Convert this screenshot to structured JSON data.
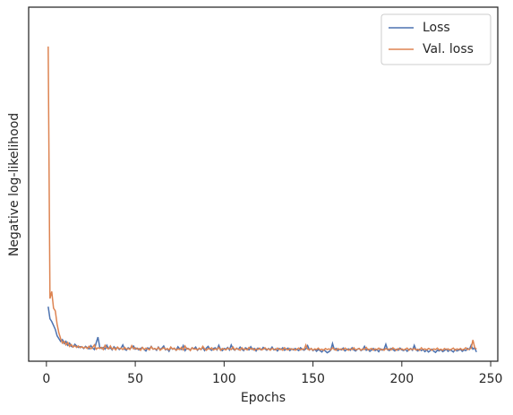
{
  "chart_data": {
    "type": "line",
    "xlabel": "Epochs",
    "ylabel": "Negative log-likelihood",
    "xlim": [
      -10,
      254
    ],
    "xticks": [
      0,
      50,
      100,
      150,
      200,
      250
    ],
    "ylim": [
      0,
      100
    ],
    "legend": "upper right",
    "x": [
      1,
      2,
      3,
      4,
      5,
      6,
      7,
      8,
      9,
      10,
      11,
      12,
      13,
      14,
      15,
      16,
      17,
      18,
      19,
      20,
      21,
      22,
      23,
      24,
      25,
      26,
      27,
      28,
      29,
      30,
      31,
      32,
      33,
      34,
      35,
      36,
      37,
      38,
      39,
      40,
      41,
      42,
      43,
      44,
      45,
      46,
      47,
      48,
      49,
      50,
      51,
      52,
      53,
      54,
      55,
      56,
      57,
      58,
      59,
      60,
      61,
      62,
      63,
      64,
      65,
      66,
      67,
      68,
      69,
      70,
      71,
      72,
      73,
      74,
      75,
      76,
      77,
      78,
      79,
      80,
      81,
      82,
      83,
      84,
      85,
      86,
      87,
      88,
      89,
      90,
      91,
      92,
      93,
      94,
      95,
      96,
      97,
      98,
      99,
      100,
      101,
      102,
      103,
      104,
      105,
      106,
      107,
      108,
      109,
      110,
      111,
      112,
      113,
      114,
      115,
      116,
      117,
      118,
      119,
      120,
      121,
      122,
      123,
      124,
      125,
      126,
      127,
      128,
      129,
      130,
      131,
      132,
      133,
      134,
      135,
      136,
      137,
      138,
      139,
      140,
      141,
      142,
      143,
      144,
      145,
      146,
      147,
      148,
      149,
      150,
      151,
      152,
      153,
      154,
      155,
      156,
      157,
      158,
      159,
      160,
      161,
      162,
      163,
      164,
      165,
      166,
      167,
      168,
      169,
      170,
      171,
      172,
      173,
      174,
      175,
      176,
      177,
      178,
      179,
      180,
      181,
      182,
      183,
      184,
      185,
      186,
      187,
      188,
      189,
      190,
      191,
      192,
      193,
      194,
      195,
      196,
      197,
      198,
      199,
      200,
      201,
      202,
      203,
      204,
      205,
      206,
      207,
      208,
      209,
      210,
      211,
      212,
      213,
      214,
      215,
      216,
      217,
      218,
      219,
      220,
      221,
      222,
      223,
      224,
      225,
      226,
      227,
      228,
      229,
      230,
      231,
      232,
      233,
      234,
      235,
      236,
      237,
      238,
      239,
      240,
      241,
      242
    ],
    "series": [
      {
        "name": "Loss",
        "color": "#4c72b0",
        "values": [
          15.4,
          12.0,
          11.2,
          10.1,
          9.0,
          7.2,
          6.4,
          5.6,
          6.1,
          5.0,
          5.6,
          4.5,
          5.1,
          4.2,
          4.0,
          4.8,
          4.3,
          3.9,
          4.1,
          4.0,
          3.6,
          4.2,
          3.8,
          3.5,
          4.4,
          3.7,
          3.3,
          5.2,
          6.8,
          4.0,
          3.6,
          3.9,
          3.4,
          4.5,
          3.5,
          3.8,
          3.2,
          4.1,
          3.6,
          3.9,
          3.3,
          3.7,
          4.6,
          3.4,
          3.1,
          3.8,
          3.5,
          3.9,
          4.3,
          3.4,
          3.7,
          3.2,
          3.6,
          3.9,
          3.3,
          2.9,
          3.8,
          3.5,
          4.2,
          3.4,
          3.6,
          3.1,
          4.0,
          3.3,
          3.7,
          4.3,
          3.2,
          3.5,
          2.8,
          3.9,
          3.4,
          3.6,
          3.1,
          4.1,
          3.5,
          3.3,
          4.4,
          3.0,
          3.7,
          3.4,
          3.2,
          3.8,
          3.5,
          4.0,
          3.1,
          3.6,
          3.3,
          3.9,
          3.0,
          3.7,
          4.2,
          3.4,
          3.1,
          3.6,
          3.8,
          3.2,
          4.5,
          3.3,
          3.0,
          3.6,
          3.4,
          3.9,
          3.2,
          4.6,
          3.5,
          3.1,
          3.7,
          3.3,
          4.0,
          3.4,
          3.0,
          3.8,
          3.5,
          3.2,
          4.1,
          3.3,
          3.6,
          2.9,
          3.7,
          3.4,
          3.2,
          3.9,
          3.5,
          3.1,
          3.6,
          3.3,
          4.0,
          3.2,
          3.5,
          2.9,
          3.6,
          3.3,
          3.8,
          3.1,
          3.4,
          3.7,
          3.0,
          3.5,
          3.2,
          3.6,
          3.3,
          3.0,
          3.8,
          3.4,
          3.1,
          3.5,
          4.4,
          3.2,
          3.6,
          3.0,
          3.4,
          2.8,
          3.3,
          3.0,
          2.6,
          3.2,
          2.9,
          2.4,
          2.7,
          3.1,
          5.0,
          3.3,
          3.6,
          3.0,
          3.4,
          3.2,
          3.7,
          2.9,
          3.3,
          3.5,
          3.1,
          3.8,
          3.2,
          2.9,
          3.4,
          3.6,
          3.0,
          3.3,
          4.2,
          3.1,
          3.4,
          2.8,
          3.2,
          3.6,
          3.0,
          3.3,
          2.7,
          3.5,
          3.1,
          3.4,
          4.8,
          3.2,
          3.0,
          3.6,
          3.3,
          2.9,
          3.4,
          3.1,
          3.7,
          3.2,
          3.0,
          3.4,
          2.8,
          3.3,
          3.6,
          3.1,
          4.5,
          3.2,
          2.9,
          3.4,
          3.0,
          3.3,
          2.7,
          3.2,
          2.6,
          3.0,
          3.4,
          2.8,
          2.5,
          3.1,
          2.9,
          3.3,
          2.7,
          3.0,
          3.4,
          2.8,
          3.2,
          3.0,
          2.6,
          3.3,
          2.9,
          3.1,
          3.4,
          2.8,
          3.2,
          3.0,
          3.6,
          3.3,
          4.5,
          3.4,
          3.8,
          2.6
        ]
      },
      {
        "name": "Val. loss",
        "color": "#dd8452",
        "values": [
          88.9,
          17.7,
          19.7,
          15.0,
          14.2,
          10.5,
          8.0,
          6.4,
          5.1,
          5.6,
          4.6,
          5.3,
          4.2,
          4.7,
          4.0,
          4.4,
          3.9,
          4.3,
          3.8,
          4.1,
          3.7,
          4.0,
          3.6,
          4.2,
          3.5,
          3.9,
          4.6,
          3.4,
          3.8,
          3.6,
          3.9,
          3.3,
          4.5,
          3.7,
          3.5,
          4.3,
          3.4,
          3.8,
          3.2,
          4.0,
          3.5,
          3.7,
          3.3,
          3.9,
          3.4,
          3.6,
          3.3,
          4.4,
          3.5,
          3.8,
          3.4,
          3.6,
          3.1,
          3.9,
          3.3,
          3.7,
          3.5,
          3.2,
          4.1,
          3.4,
          3.6,
          3.3,
          3.9,
          3.1,
          3.5,
          3.8,
          3.3,
          3.6,
          3.2,
          4.0,
          3.4,
          3.7,
          3.1,
          3.5,
          3.3,
          3.9,
          3.2,
          4.3,
          3.4,
          3.6,
          3.0,
          3.8,
          3.4,
          3.5,
          3.2,
          3.7,
          3.3,
          4.2,
          3.5,
          3.1,
          3.6,
          3.4,
          3.8,
          3.2,
          3.5,
          3.3,
          3.9,
          3.1,
          3.6,
          3.4,
          3.2,
          3.7,
          3.5,
          3.3,
          4.0,
          3.2,
          3.6,
          3.4,
          3.1,
          3.8,
          3.3,
          3.5,
          3.2,
          3.9,
          3.4,
          3.6,
          3.1,
          3.5,
          3.3,
          3.7,
          3.2,
          3.4,
          3.8,
          3.3,
          3.5,
          3.1,
          3.6,
          3.4,
          3.2,
          3.7,
          3.3,
          3.5,
          3.1,
          3.8,
          3.4,
          3.2,
          3.6,
          3.3,
          3.5,
          3.1,
          3.4,
          3.7,
          3.2,
          3.5,
          3.3,
          4.6,
          3.4,
          3.2,
          3.6,
          3.1,
          3.5,
          3.3,
          3.7,
          3.2,
          3.4,
          3.1,
          3.6,
          3.3,
          3.5,
          3.2,
          3.8,
          3.4,
          3.1,
          3.6,
          3.3,
          3.5,
          3.2,
          3.7,
          3.4,
          3.1,
          3.5,
          3.3,
          3.8,
          3.2,
          3.4,
          3.6,
          3.1,
          3.5,
          3.3,
          3.9,
          3.2,
          3.4,
          3.6,
          3.1,
          3.5,
          3.3,
          3.7,
          3.2,
          3.4,
          3.1,
          3.6,
          3.3,
          3.5,
          3.2,
          3.8,
          3.4,
          3.1,
          3.6,
          3.3,
          3.5,
          3.2,
          3.4,
          3.7,
          3.1,
          3.5,
          3.3,
          3.6,
          3.2,
          3.4,
          3.1,
          3.8,
          3.3,
          3.5,
          3.2,
          3.6,
          3.4,
          3.1,
          3.5,
          3.3,
          3.7,
          3.2,
          3.4,
          3.1,
          3.6,
          3.3,
          3.5,
          3.2,
          3.4,
          3.7,
          3.1,
          3.5,
          3.3,
          3.6,
          3.2,
          3.4,
          3.8,
          3.3,
          3.5,
          3.6,
          6.0,
          3.9,
          3.4
        ]
      }
    ]
  }
}
